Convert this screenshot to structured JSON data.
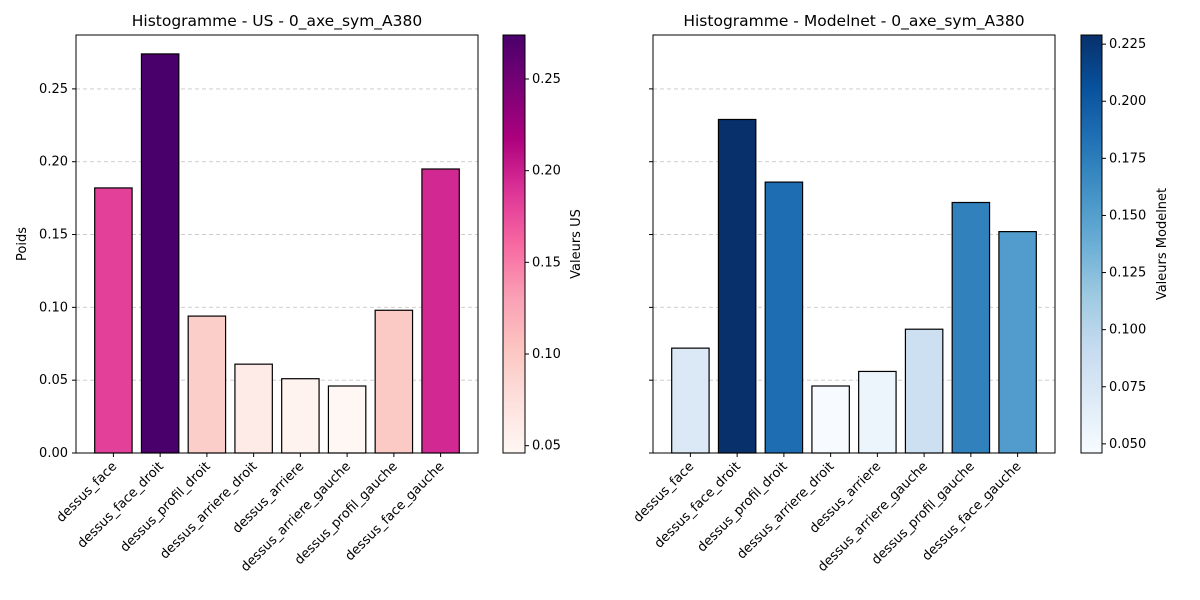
{
  "chart_data": [
    {
      "type": "bar",
      "title": "Histogramme - US - 0_axe_sym_A380",
      "xlabel": "",
      "ylabel": "Poids",
      "ylim": [
        0,
        0.287
      ],
      "yticks": [
        "0.00",
        "0.05",
        "0.10",
        "0.15",
        "0.20",
        "0.25"
      ],
      "grid": "horizontal dashed",
      "categories": [
        "dessus_face",
        "dessus_face_droit",
        "dessus_profil_droit",
        "dessus_arriere_droit",
        "dessus_arriere",
        "dessus_arriere_gauche",
        "dessus_profil_gauche",
        "dessus_face_gauche"
      ],
      "values": [
        0.182,
        0.274,
        0.094,
        0.061,
        0.051,
        0.046,
        0.098,
        0.195
      ],
      "colorbar": {
        "label": "Valeurs US",
        "colormap": "RdPu",
        "range": [
          0.046,
          0.274
        ],
        "ticks": [
          "0.05",
          "0.10",
          "0.15",
          "0.20",
          "0.25"
        ]
      }
    },
    {
      "type": "bar",
      "title": "Histogramme - Modelnet - 0_axe_sym_A380",
      "xlabel": "",
      "ylabel": "",
      "ylim": [
        0,
        0.287
      ],
      "grid": "horizontal dashed",
      "categories": [
        "dessus_face",
        "dessus_face_droit",
        "dessus_profil_droit",
        "dessus_arriere_droit",
        "dessus_arriere",
        "dessus_arriere_gauche",
        "dessus_profil_gauche",
        "dessus_face_gauche"
      ],
      "values": [
        0.072,
        0.229,
        0.186,
        0.046,
        0.056,
        0.085,
        0.172,
        0.152
      ],
      "colorbar": {
        "label": "Valeurs Modelnet",
        "colormap": "Blues",
        "range": [
          0.046,
          0.229
        ],
        "ticks": [
          "0.050",
          "0.075",
          "0.100",
          "0.125",
          "0.150",
          "0.175",
          "0.200",
          "0.225"
        ]
      }
    }
  ],
  "colors": {
    "grid": "#c8c8c8",
    "bar_edge": "#000000"
  }
}
